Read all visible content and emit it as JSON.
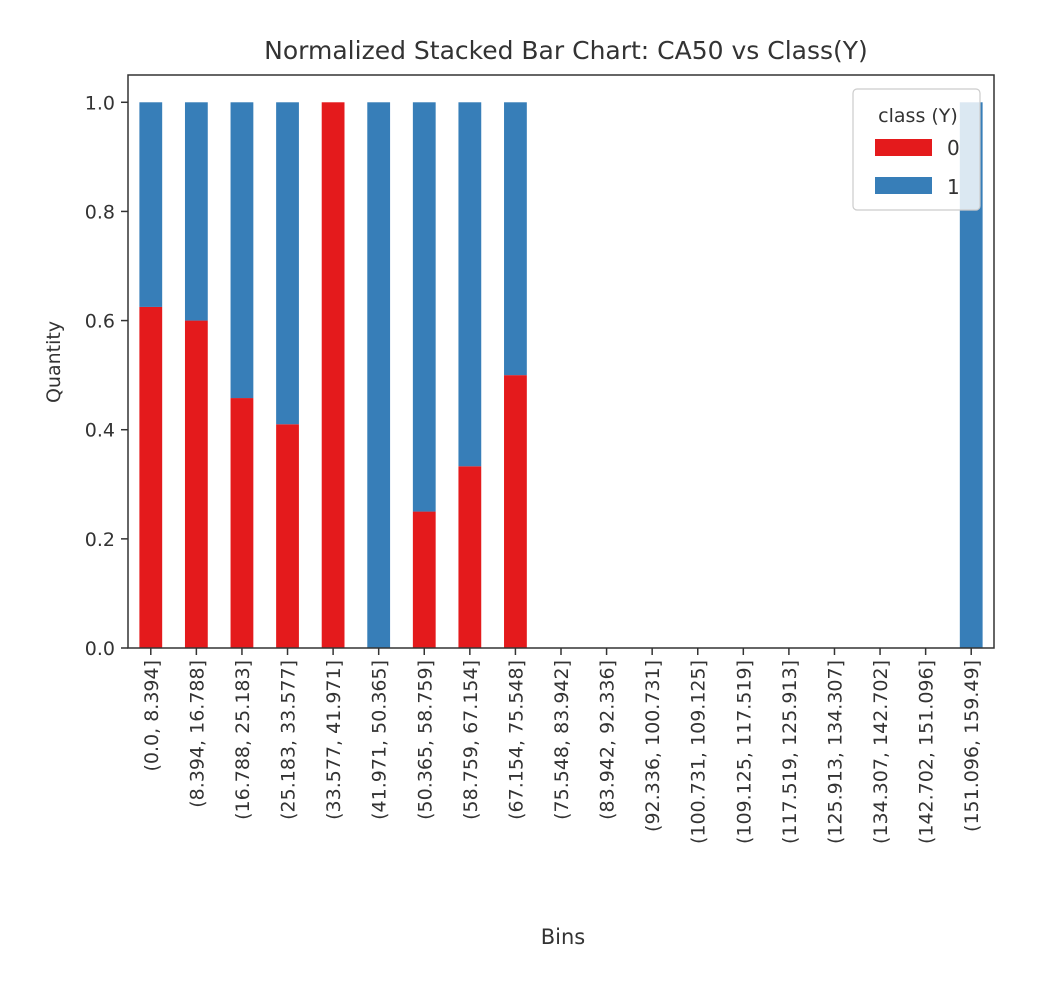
{
  "chart_data": {
    "type": "bar",
    "stacked": true,
    "title": "Normalized Stacked Bar Chart: CA50 vs Class(Y)",
    "xlabel": "Bins",
    "ylabel": "Quantity",
    "ylim": [
      0,
      1.05
    ],
    "yticks": [
      0.0,
      0.2,
      0.4,
      0.6,
      0.8,
      1.0
    ],
    "ytick_labels": [
      "0.0",
      "0.2",
      "0.4",
      "0.6",
      "0.8",
      "1.0"
    ],
    "grid": false,
    "legend": {
      "title": "class (Y)",
      "placement": "top-right"
    },
    "categories": [
      "(0.0, 8.394]",
      "(8.394, 16.788]",
      "(16.788, 25.183]",
      "(25.183, 33.577]",
      "(33.577, 41.971]",
      "(41.971, 50.365]",
      "(50.365, 58.759]",
      "(58.759, 67.154]",
      "(67.154, 75.548]",
      "(75.548, 83.942]",
      "(83.942, 92.336]",
      "(92.336, 100.731]",
      "(100.731, 109.125]",
      "(109.125, 117.519]",
      "(117.519, 125.913]",
      "(125.913, 134.307]",
      "(134.307, 142.702]",
      "(142.702, 151.096]",
      "(151.096, 159.49]"
    ],
    "series": [
      {
        "name": "0",
        "color": "#e41a1c",
        "values": [
          0.625,
          0.6,
          0.458,
          0.41,
          1.0,
          0.0,
          0.25,
          0.333,
          0.5,
          0,
          0,
          0,
          0,
          0,
          0,
          0,
          0,
          0,
          0.0
        ]
      },
      {
        "name": "1",
        "color": "#377eb8",
        "values": [
          0.375,
          0.4,
          0.542,
          0.59,
          0.0,
          1.0,
          0.75,
          0.667,
          0.5,
          0,
          0,
          0,
          0,
          0,
          0,
          0,
          0,
          0,
          1.0
        ]
      }
    ]
  }
}
